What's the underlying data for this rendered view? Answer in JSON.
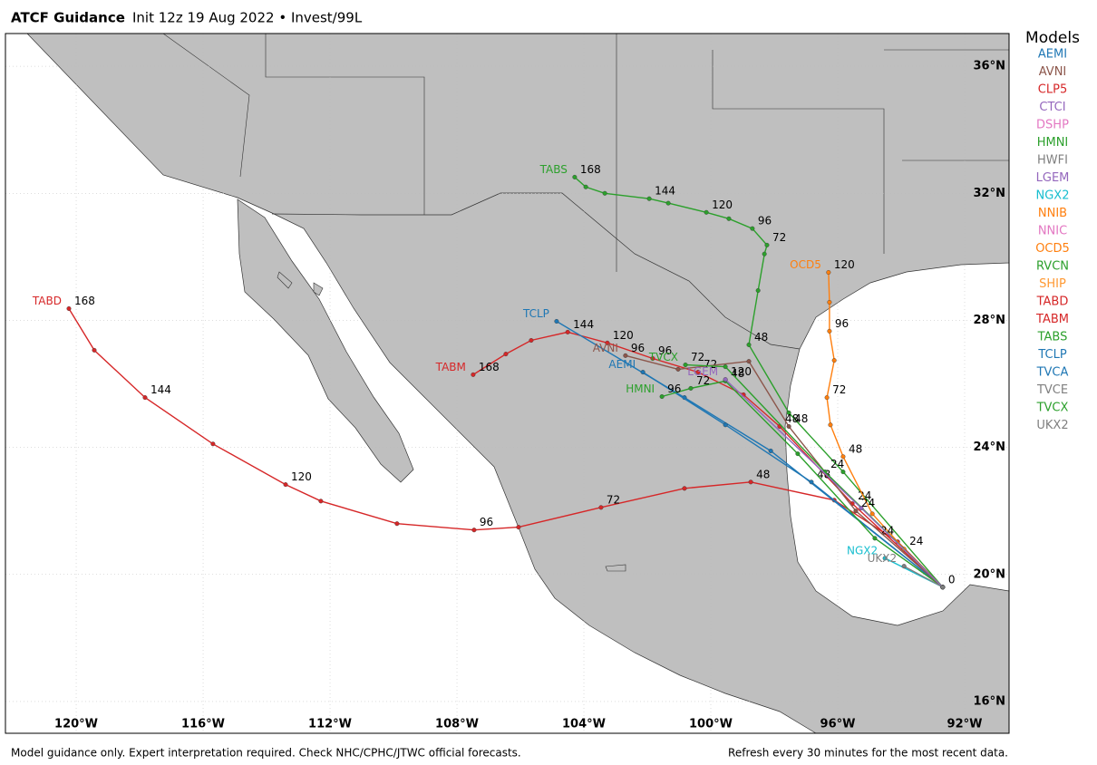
{
  "header": {
    "title": "ATCF Guidance",
    "subtitle": "Init 12z 19 Aug 2022 • Invest/99L"
  },
  "map": {
    "lonlim": [
      -122.23,
      -90.6
    ],
    "latlim": [
      15.0,
      37.03
    ],
    "lonticks": [
      {
        "value": -120,
        "label": "120°W"
      },
      {
        "value": -116,
        "label": "116°W"
      },
      {
        "value": -112,
        "label": "112°W"
      },
      {
        "value": -108,
        "label": "108°W"
      },
      {
        "value": -104,
        "label": "104°W"
      },
      {
        "value": -100,
        "label": "100°W"
      },
      {
        "value": -96,
        "label": "96°W"
      },
      {
        "value": -92,
        "label": "92°W"
      }
    ],
    "latticks": [
      {
        "value": 36,
        "label": "36°N"
      },
      {
        "value": 32,
        "label": "32°N"
      },
      {
        "value": 28,
        "label": "28°N"
      },
      {
        "value": 24,
        "label": "24°N"
      },
      {
        "value": 20,
        "label": "20°N"
      },
      {
        "value": 16,
        "label": "16°N"
      }
    ],
    "grid": true
  },
  "tracks": [
    {
      "name": "TABD",
      "lon": [
        -92.69,
        -94.11,
        -96.11,
        -98.74,
        -100.83,
        -103.46,
        -106.06,
        -107.46,
        -109.89,
        -112.29,
        -113.4,
        -115.69,
        -117.83,
        -119.43,
        -120.23
      ],
      "lat": [
        19.6,
        21.03,
        22.34,
        22.91,
        22.71,
        22.11,
        21.49,
        21.4,
        21.6,
        22.31,
        22.83,
        24.11,
        25.57,
        27.06,
        28.37
      ],
      "taus": [
        0,
        null,
        null,
        48,
        null,
        72,
        null,
        96,
        null,
        null,
        120,
        null,
        144,
        null,
        168
      ]
    },
    {
      "name": "TABS",
      "lon": [
        -92.69,
        -95.83,
        -97.54,
        -98.8,
        -98.51,
        -98.31,
        -98.23,
        -98.69,
        -99.43,
        -100.14,
        -101.34,
        -101.94,
        -103.34,
        -103.94,
        -104.29
      ],
      "lat": [
        19.6,
        23.23,
        25.09,
        27.23,
        28.94,
        30.09,
        30.37,
        30.89,
        31.2,
        31.4,
        31.69,
        31.83,
        32.0,
        32.2,
        32.51
      ],
      "taus": [
        null,
        null,
        null,
        48,
        null,
        null,
        72,
        96,
        null,
        120,
        null,
        144,
        null,
        null,
        168
      ]
    },
    {
      "name": "TABM",
      "lon": [
        -92.69,
        -95.54,
        -97.83,
        -98.97,
        -100.4,
        -101.83,
        -103.26,
        -104.51,
        -105.66,
        -106.46,
        -107.49
      ],
      "lat": [
        19.6,
        22.23,
        24.66,
        25.66,
        26.37,
        26.8,
        27.29,
        27.63,
        27.37,
        26.94,
        26.29
      ],
      "taus": [
        null,
        24,
        48,
        null,
        72,
        96,
        120,
        144,
        null,
        null,
        168
      ]
    },
    {
      "name": "TCLP",
      "lon": [
        -92.69,
        -98.11,
        -100.83,
        -104.86
      ],
      "lat": [
        19.6,
        23.89,
        25.57,
        27.97
      ],
      "taus": [
        null,
        null,
        null,
        null
      ]
    },
    {
      "name": "AEMI",
      "lon": [
        -92.69,
        -96.83,
        -99.54,
        -102.14
      ],
      "lat": [
        19.6,
        22.91,
        24.71,
        26.37
      ],
      "taus": [
        null,
        48,
        null,
        null
      ]
    },
    {
      "name": "OCD5",
      "lon": [
        -92.69,
        -93.91,
        -94.91,
        -95.83,
        -96.23,
        -96.34,
        -96.11,
        -96.26,
        -96.26,
        -96.29
      ],
      "lat": [
        19.6,
        20.8,
        21.91,
        23.71,
        24.71,
        25.57,
        26.74,
        27.66,
        28.57,
        29.51
      ],
      "taus": [
        null,
        24,
        null,
        48,
        null,
        72,
        null,
        96,
        null,
        120
      ]
    },
    {
      "name": "HMNI",
      "lon": [
        -92.69,
        -94.83,
        -97.26,
        -99.54,
        -100.63,
        -101.54
      ],
      "lat": [
        19.6,
        21.14,
        23.8,
        26.09,
        25.86,
        25.6
      ],
      "taus": [
        null,
        24,
        null,
        48,
        72,
        96
      ]
    },
    {
      "name": "AVNI",
      "lon": [
        -92.69,
        -95.43,
        -97.54,
        -98.8,
        -101.03,
        -102.69
      ],
      "lat": [
        19.6,
        22.0,
        24.66,
        26.71,
        26.46,
        26.89
      ],
      "taus": [
        null,
        24,
        48,
        null,
        null,
        96
      ]
    },
    {
      "name": "TVCX",
      "lon": [
        -92.69,
        -96.4,
        -99.54,
        -100.8
      ],
      "lat": [
        19.6,
        23.23,
        26.54,
        26.6
      ],
      "taus": [
        null,
        24,
        null,
        72
      ]
    },
    {
      "name": "LGEM",
      "lon": [
        -92.69,
        -95.26,
        -99.54
      ],
      "lat": [
        19.6,
        22.09,
        26.14
      ],
      "taus": [
        null,
        null,
        120
      ]
    },
    {
      "name": "NGX2",
      "lon": [
        -92.69,
        -94.51
      ],
      "lat": [
        19.6,
        20.51
      ],
      "taus": [
        null,
        null
      ]
    },
    {
      "name": "UKX2",
      "lon": [
        -92.69,
        -93.91
      ],
      "lat": [
        19.6,
        20.26
      ],
      "taus": [
        null,
        null
      ]
    }
  ],
  "legend": {
    "title": "Models",
    "items": [
      {
        "name": "AEMI",
        "color": "#1f77b4"
      },
      {
        "name": "AVNI",
        "color": "#8c564b"
      },
      {
        "name": "CLP5",
        "color": "#d62728"
      },
      {
        "name": "CTCI",
        "color": "#9467bd"
      },
      {
        "name": "DSHP",
        "color": "#e377c2"
      },
      {
        "name": "HMNI",
        "color": "#2ca02c"
      },
      {
        "name": "HWFI",
        "color": "#7f7f7f"
      },
      {
        "name": "LGEM",
        "color": "#9467bd"
      },
      {
        "name": "NGX2",
        "color": "#17becf"
      },
      {
        "name": "NNIB",
        "color": "#ff7f0e"
      },
      {
        "name": "NNIC",
        "color": "#e377c2"
      },
      {
        "name": "OCD5",
        "color": "#ff7f0e"
      },
      {
        "name": "RVCN",
        "color": "#2ca02c"
      },
      {
        "name": "SHIP",
        "color": "#ff9933"
      },
      {
        "name": "TABD",
        "color": "#d62728"
      },
      {
        "name": "TABM",
        "color": "#d62728"
      },
      {
        "name": "TABS",
        "color": "#2ca02c"
      },
      {
        "name": "TCLP",
        "color": "#1f77b4"
      },
      {
        "name": "TVCA",
        "color": "#1f77b4"
      },
      {
        "name": "TVCE",
        "color": "#7f7f7f"
      },
      {
        "name": "TVCX",
        "color": "#2ca02c"
      },
      {
        "name": "UKX2",
        "color": "#7f7f7f"
      }
    ]
  },
  "footer": {
    "left": "Model guidance only. Expert interpretation required. Check NHC/CPHC/JTWC official forecasts.",
    "right": "Refresh every 30 minutes for the most recent data."
  }
}
